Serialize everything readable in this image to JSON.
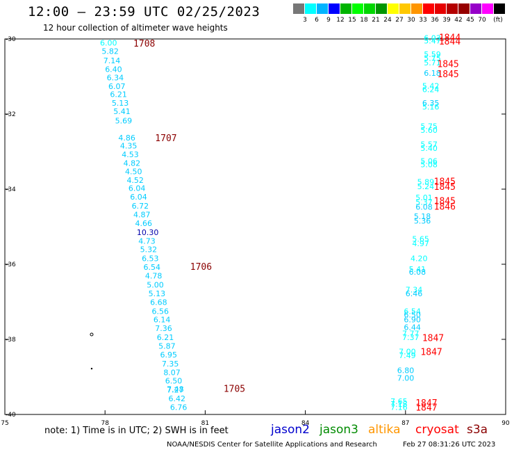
{
  "title": "12:00 — 23:59 UTC 02/25/2023",
  "subtitle": "12 hour collection of altimeter wave heights",
  "colorbar": {
    "colors": [
      "#777777",
      "#00ffff",
      "#00b4ff",
      "#0000ff",
      "#00b400",
      "#00ff00",
      "#00d700",
      "#009600",
      "#ffff00",
      "#ffc800",
      "#ff9600",
      "#ff0000",
      "#e60000",
      "#b40000",
      "#960000",
      "#9600c8",
      "#ff00ff",
      "#000000"
    ],
    "labels": [
      "3",
      "6",
      "9",
      "12",
      "15",
      "18",
      "21",
      "24",
      "27",
      "30",
      "33",
      "36",
      "39",
      "42",
      "45",
      "70",
      "(ft)"
    ]
  },
  "chart_data": {
    "type": "scatter",
    "xlim": [
      75,
      90
    ],
    "ylim": [
      -40,
      -30
    ],
    "x_ticks": [
      "75",
      "78",
      "81",
      "84",
      "87",
      "90"
    ],
    "y_ticks": [
      "-30",
      "-32",
      "-34",
      "-36",
      "-38",
      "-40"
    ],
    "series": [
      {
        "name": "jason2",
        "color": "#0000cd",
        "points": []
      },
      {
        "name": "s3a",
        "color": "#8b0000",
        "points": [
          [
            77.85,
            -30.18,
            "6.00",
            "#00ffff"
          ],
          [
            77.9,
            -30.4,
            "5.82",
            "#00ccff"
          ],
          [
            77.95,
            -30.65,
            "7.14",
            "#00ccff"
          ],
          [
            78.0,
            -30.88,
            "6.40",
            "#00ccff"
          ],
          [
            78.05,
            -31.1,
            "6.34",
            "#00ccff"
          ],
          [
            78.1,
            -31.33,
            "6.07",
            "#00ccff"
          ],
          [
            78.15,
            -31.55,
            "6.21",
            "#00ccff"
          ],
          [
            78.2,
            -31.78,
            "5.13",
            "#00ccff"
          ],
          [
            78.25,
            -32.0,
            "5.41",
            "#00ccff"
          ],
          [
            78.3,
            -32.25,
            "5.69",
            "#00ccff"
          ],
          [
            78.4,
            -32.7,
            "4.86",
            "#00ccff"
          ],
          [
            78.45,
            -32.92,
            "4.35",
            "#00ccff"
          ],
          [
            78.5,
            -33.15,
            "4.53",
            "#00ccff"
          ],
          [
            78.55,
            -33.38,
            "4.82",
            "#00ccff"
          ],
          [
            78.6,
            -33.6,
            "4.50",
            "#00ccff"
          ],
          [
            78.65,
            -33.83,
            "4.52",
            "#00ccff"
          ],
          [
            78.7,
            -34.05,
            "6.04",
            "#00ccff"
          ],
          [
            78.75,
            -34.28,
            "6.04",
            "#00ccff"
          ],
          [
            78.8,
            -34.52,
            "6.72",
            "#00ccff"
          ],
          [
            78.85,
            -34.75,
            "4.87",
            "#00ccff"
          ],
          [
            78.9,
            -34.98,
            "4.66",
            "#00ccff"
          ],
          [
            78.95,
            -35.22,
            "10.30",
            "#0000aa"
          ],
          [
            79.0,
            -35.45,
            "4.73",
            "#00ccff"
          ],
          [
            79.05,
            -35.68,
            "5.32",
            "#00ccff"
          ],
          [
            79.1,
            -35.92,
            "6.53",
            "#00ccff"
          ],
          [
            79.15,
            -36.15,
            "6.54",
            "#00ccff"
          ],
          [
            79.2,
            -36.38,
            "4.78",
            "#00ccff"
          ],
          [
            79.25,
            -36.62,
            "5.00",
            "#00ccff"
          ],
          [
            79.3,
            -36.85,
            "5.13",
            "#00ccff"
          ],
          [
            79.35,
            -37.08,
            "6.68",
            "#00ccff"
          ],
          [
            79.4,
            -37.32,
            "6.56",
            "#00ccff"
          ],
          [
            79.45,
            -37.55,
            "6.14",
            "#00ccff"
          ],
          [
            79.5,
            -37.78,
            "7.36",
            "#00ccff"
          ],
          [
            79.55,
            -38.02,
            "6.21",
            "#00ccff"
          ],
          [
            79.6,
            -38.25,
            "5.87",
            "#00ccff"
          ],
          [
            79.65,
            -38.48,
            "6.95",
            "#00ccff"
          ],
          [
            79.7,
            -38.72,
            "7.35",
            "#00ccff"
          ],
          [
            79.75,
            -38.95,
            "8.07",
            "#00ccff"
          ],
          [
            79.8,
            -39.18,
            "6.50",
            "#00ccff"
          ],
          [
            79.85,
            -39.42,
            "7.27",
            "#00ccff"
          ],
          [
            79.85,
            -39.4,
            "7.48",
            "#00ccff"
          ],
          [
            79.9,
            -39.65,
            "6.42",
            "#00ccff"
          ],
          [
            79.95,
            -39.88,
            "6.76",
            "#00ccff"
          ]
        ]
      },
      {
        "name": "cryosat",
        "color": "#ff0000",
        "points": [
          [
            87.55,
            -30.05,
            "6.03",
            "#00ffff"
          ],
          [
            87.55,
            -30.12,
            "5.47",
            "#00ffff"
          ],
          [
            87.55,
            -30.48,
            "5.59",
            "#00ffff"
          ],
          [
            87.55,
            -30.58,
            "5.75",
            "#00ffff"
          ],
          [
            87.55,
            -30.7,
            "5.71",
            "#00ffff"
          ],
          [
            87.55,
            -30.98,
            "6.18",
            "#00ccff"
          ],
          [
            87.5,
            -31.32,
            "5.42",
            "#00ffff"
          ],
          [
            87.5,
            -31.42,
            "6.24",
            "#00ffff"
          ],
          [
            87.5,
            -31.78,
            "6.35",
            "#00ccff"
          ],
          [
            87.5,
            -31.88,
            "5.16",
            "#00ffff"
          ],
          [
            87.45,
            -32.4,
            "5.75",
            "#00ffff"
          ],
          [
            87.45,
            -32.5,
            "5.60",
            "#00ffff"
          ],
          [
            87.45,
            -32.88,
            "5.57",
            "#00ffff"
          ],
          [
            87.45,
            -32.98,
            "5.40",
            "#00ffff"
          ],
          [
            87.45,
            -33.32,
            "5.06",
            "#00ffff"
          ],
          [
            87.45,
            -33.42,
            "5.08",
            "#00ffff"
          ],
          [
            87.35,
            -33.88,
            "5.89",
            "#00ffff"
          ],
          [
            87.35,
            -34.0,
            "5.24",
            "#00ffff"
          ],
          [
            87.3,
            -34.3,
            "5.01",
            "#00ffff"
          ],
          [
            87.3,
            -34.42,
            "5.37",
            "#00ffff"
          ],
          [
            87.3,
            -34.55,
            "6.08",
            "#00ccff"
          ],
          [
            87.25,
            -34.8,
            "5.18",
            "#00ccff"
          ],
          [
            87.25,
            -34.92,
            "5.36",
            "#00ccff"
          ],
          [
            87.2,
            -35.4,
            "5.65",
            "#00ffff"
          ],
          [
            87.2,
            -35.52,
            "4.97",
            "#00ffff"
          ],
          [
            87.15,
            -35.92,
            "4.20",
            "#00ffff"
          ],
          [
            87.1,
            -36.2,
            "5.41",
            "#00ffff"
          ],
          [
            87.1,
            -36.28,
            "6.08",
            "#00ccff"
          ],
          [
            87.0,
            -36.75,
            "7.34",
            "#00ffff"
          ],
          [
            87.0,
            -36.85,
            "6.46",
            "#00ccff"
          ],
          [
            86.95,
            -37.32,
            "6.54",
            "#00ffff"
          ],
          [
            86.95,
            -37.42,
            "6.50",
            "#00ccff"
          ],
          [
            86.95,
            -37.55,
            "6.90",
            "#00ccff"
          ],
          [
            86.95,
            -37.75,
            "6.44",
            "#00ccff"
          ],
          [
            86.9,
            -37.92,
            "7.77",
            "#00ffff"
          ],
          [
            86.9,
            -38.02,
            "7.37",
            "#00ffff"
          ],
          [
            86.8,
            -38.4,
            "7.00",
            "#00ffff"
          ],
          [
            86.8,
            -38.5,
            "7.49",
            "#00ffff"
          ],
          [
            86.75,
            -38.9,
            "6.80",
            "#00ccff"
          ],
          [
            86.75,
            -39.1,
            "7.00",
            "#00ccff"
          ],
          [
            86.55,
            -39.72,
            "7.65",
            "#00ffff"
          ],
          [
            86.55,
            -39.8,
            "7.18",
            "#00ffff"
          ],
          [
            86.55,
            -39.88,
            "7.16",
            "#00ffff"
          ]
        ]
      }
    ],
    "time_labels": [
      {
        "text": "1708",
        "lon": 78.85,
        "lat": -30.2,
        "color": "#8b0000"
      },
      {
        "text": "1707",
        "lon": 79.5,
        "lat": -32.72,
        "color": "#8b0000"
      },
      {
        "text": "1706",
        "lon": 80.55,
        "lat": -36.15,
        "color": "#8b0000"
      },
      {
        "text": "1705",
        "lon": 81.55,
        "lat": -39.4,
        "color": "#8b0000"
      },
      {
        "text": "1844",
        "lon": 88.0,
        "lat": -30.05,
        "color": "#ff0000"
      },
      {
        "text": "1844",
        "lon": 88.0,
        "lat": -30.15,
        "color": "#ff0000"
      },
      {
        "text": "1845",
        "lon": 87.95,
        "lat": -30.75,
        "color": "#ff0000"
      },
      {
        "text": "1845",
        "lon": 87.95,
        "lat": -31.02,
        "color": "#ff0000"
      },
      {
        "text": "1845",
        "lon": 87.85,
        "lat": -33.88,
        "color": "#ff0000"
      },
      {
        "text": "1845",
        "lon": 87.85,
        "lat": -34.02,
        "color": "#ff0000"
      },
      {
        "text": "1845",
        "lon": 87.85,
        "lat": -34.4,
        "color": "#ff0000"
      },
      {
        "text": "1846",
        "lon": 87.85,
        "lat": -34.55,
        "color": "#ff0000"
      },
      {
        "text": "1847",
        "lon": 87.5,
        "lat": -38.05,
        "color": "#ff0000"
      },
      {
        "text": "1847",
        "lon": 87.45,
        "lat": -38.42,
        "color": "#ff0000"
      },
      {
        "text": "1847",
        "lon": 87.3,
        "lat": -39.78,
        "color": "#ff0000"
      },
      {
        "text": "1847",
        "lon": 87.3,
        "lat": -39.9,
        "color": "#ff0000"
      }
    ],
    "markers": [
      {
        "symbol": "o",
        "lon": 77.6,
        "lat": -37.87
      },
      {
        "symbol": "dot",
        "lon": 77.6,
        "lat": -38.78
      }
    ]
  },
  "note": "note: 1) Time is in UTC; 2) SWH is in feet",
  "legend": [
    {
      "label": "jason2",
      "color": "#0000cd"
    },
    {
      "label": "jason3",
      "color": "#008b00"
    },
    {
      "label": "altika",
      "color": "#ff9600"
    },
    {
      "label": "cryosat",
      "color": "#ff0000"
    },
    {
      "label": "s3a",
      "color": "#8b0000"
    }
  ],
  "credit": "NOAA/NESDIS Center for Satellite Applications and Research",
  "timestamp": "Feb 27 08:31:26 UTC 2023"
}
